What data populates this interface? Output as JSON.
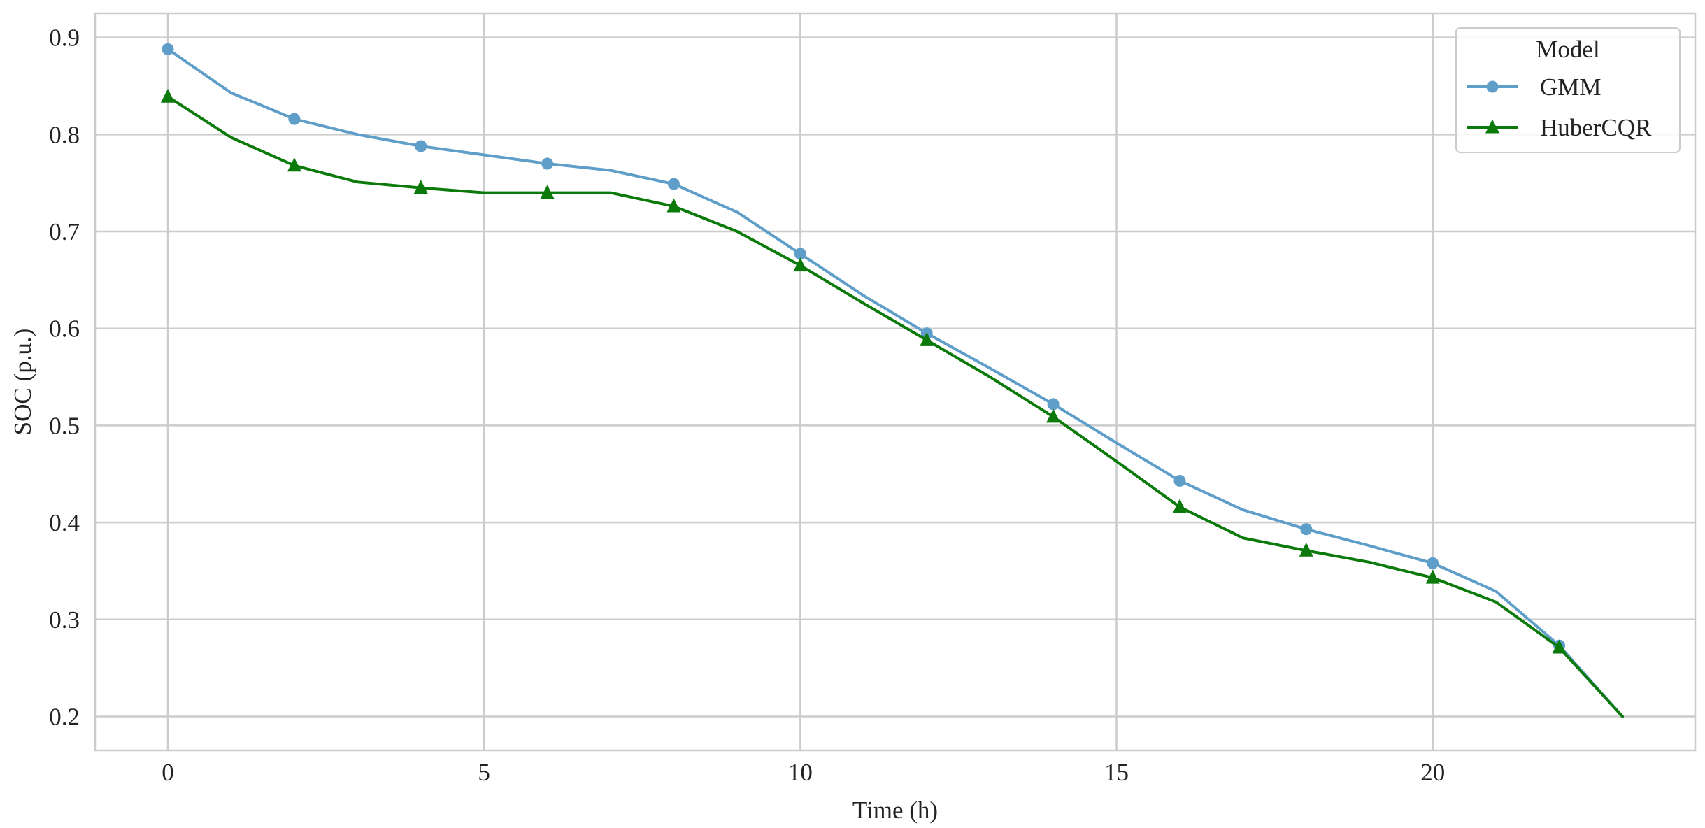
{
  "chart_data": {
    "type": "line",
    "title": "",
    "xlabel": "Time (h)",
    "ylabel": "SOC (p.u.)",
    "xlim": [
      -1.15,
      24.15
    ],
    "ylim": [
      0.165,
      0.925
    ],
    "xticks": [
      0,
      5,
      10,
      15,
      20
    ],
    "yticks": [
      0.2,
      0.3,
      0.4,
      0.5,
      0.6,
      0.7,
      0.8,
      0.9
    ],
    "grid": true,
    "legend": {
      "title": "Model",
      "placement": "top-right"
    },
    "x": [
      0,
      1,
      2,
      3,
      4,
      5,
      6,
      7,
      8,
      9,
      10,
      11,
      12,
      13,
      14,
      15,
      16,
      17,
      18,
      19,
      20,
      21,
      22,
      23
    ],
    "series": [
      {
        "name": "GMM",
        "color": "#5f9ec9",
        "marker": "circle",
        "marker_every": 2,
        "values": [
          0.888,
          0.843,
          0.816,
          0.8,
          0.788,
          0.779,
          0.77,
          0.763,
          0.749,
          0.72,
          0.677,
          0.634,
          0.595,
          0.559,
          0.522,
          0.482,
          0.443,
          0.413,
          0.393,
          0.376,
          0.358,
          0.329,
          0.273,
          0.2
        ]
      },
      {
        "name": "HuberCQR",
        "color": "#0b7a0b",
        "marker": "triangle",
        "marker_every": 2,
        "values": [
          0.839,
          0.797,
          0.768,
          0.751,
          0.745,
          0.74,
          0.74,
          0.74,
          0.726,
          0.7,
          0.665,
          0.626,
          0.588,
          0.55,
          0.509,
          0.463,
          0.416,
          0.384,
          0.371,
          0.359,
          0.343,
          0.318,
          0.271,
          0.2
        ]
      }
    ]
  }
}
